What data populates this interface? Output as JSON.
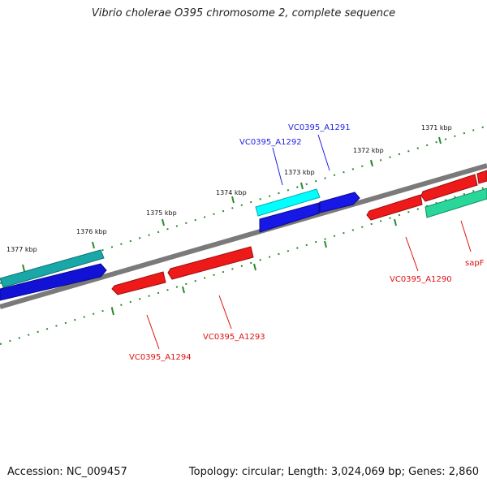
{
  "title": "Vibrio cholerae O395 chromosome 2, complete sequence",
  "footer": {
    "accession": "Accession: NC_009457",
    "meta": "Topology: circular; Length: 3,024,069 bp; Genes: 2,860"
  },
  "scale_labels": [
    "1377 kbp",
    "1376 kbp",
    "1375 kbp",
    "1374 kbp",
    "1373 kbp",
    "1372 kbp",
    "1371 kbp"
  ],
  "genes": [
    {
      "id": "VC0395_A1291",
      "label": "VC0395_A1291",
      "strand": "forward",
      "color": "#1f1fe0"
    },
    {
      "id": "VC0395_A1292",
      "label": "VC0395_A1292",
      "strand": "forward",
      "color": "#1f1fe0"
    },
    {
      "id": "VC0395_A1290",
      "label": "VC0395_A1290",
      "strand": "reverse",
      "color": "#e01010"
    },
    {
      "id": "VC0395_A1293",
      "label": "VC0395_A1293",
      "strand": "reverse",
      "color": "#e01010"
    },
    {
      "id": "VC0395_A1294",
      "label": "VC0395_A1294",
      "strand": "reverse",
      "color": "#e01010"
    },
    {
      "id": "sapF",
      "label": "sapF",
      "strand": "reverse",
      "color": "#e01010"
    }
  ],
  "colors": {
    "backbone": "#808080",
    "scale_ticks": "#2a8a2a",
    "forward_label": "#1f1fe0",
    "reverse_label": "#e01010"
  }
}
